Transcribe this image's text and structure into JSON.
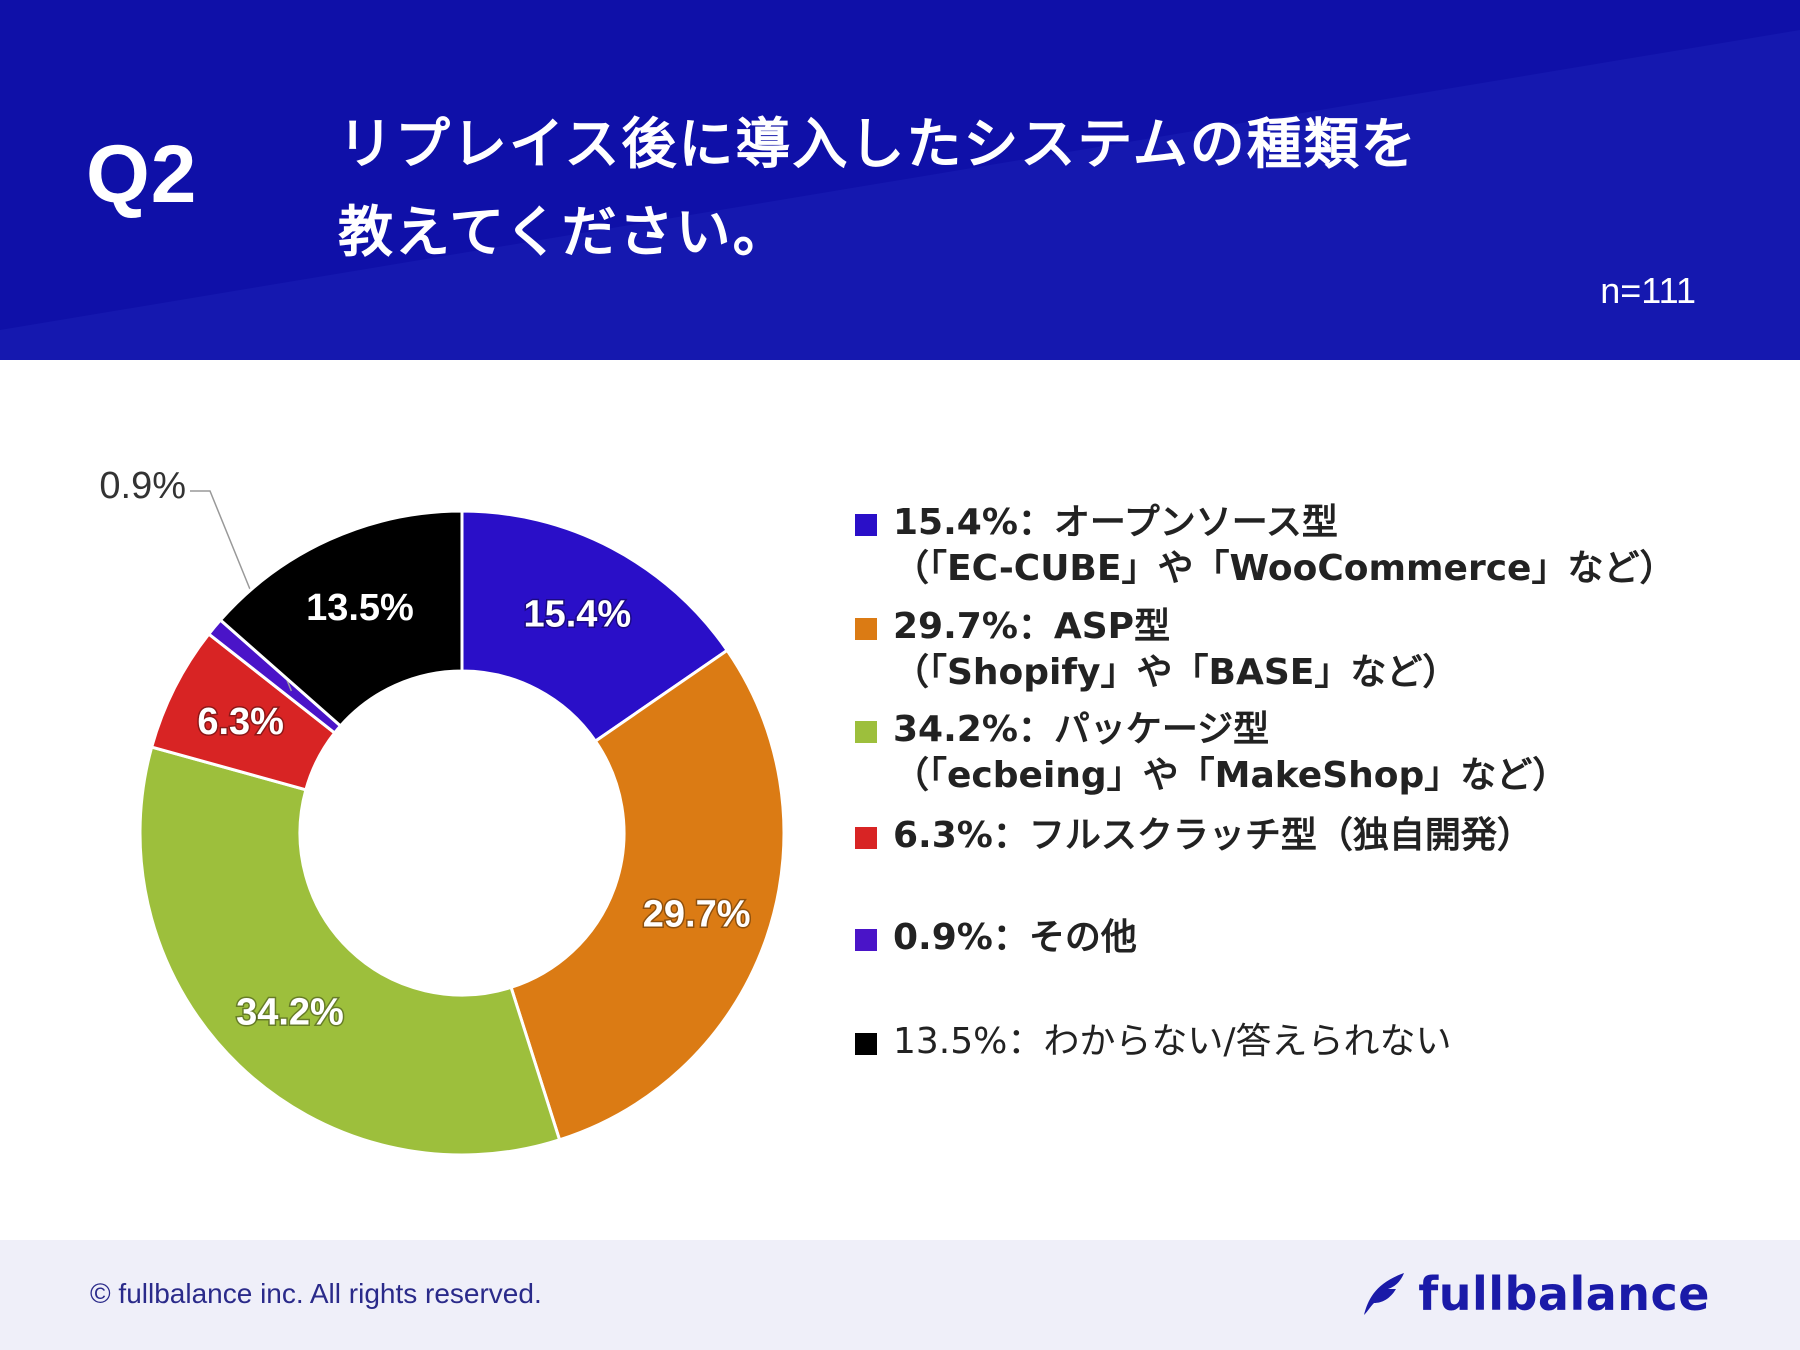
{
  "header": {
    "qnum": "Q2",
    "question_line1": "リプレイス後に導入したシステムの種類を",
    "question_line2": "教えてください。",
    "sample": "n=111"
  },
  "colors": {
    "header_bg": "#0f10a8",
    "brand": "#1a1aa8"
  },
  "chart_data": {
    "type": "pie",
    "donut": true,
    "categories": [
      "オープンソース型",
      "ASP型",
      "パッケージ型",
      "フルスクラッチ型",
      "その他",
      "わからない/答えられない"
    ],
    "values": [
      15.4,
      29.7,
      34.2,
      6.3,
      0.9,
      13.5
    ],
    "slice_labels": [
      "15.4%",
      "29.7%",
      "34.2%",
      "6.3%",
      "0.9%",
      "13.5%"
    ],
    "colors": [
      "#2a0fc8",
      "#db7b14",
      "#9dbf3c",
      "#d82424",
      "#4a14c8",
      "#000000"
    ],
    "legend_position": "right"
  },
  "legend": [
    {
      "line1": "15.4%：オープンソース型",
      "line2": "（「EC-CUBE」や「WooCommerce」など）",
      "color": "#2a0fc8"
    },
    {
      "line1": "29.7%：ASP型",
      "line2": "（「Shopify」や「BASE」など）",
      "color": "#db7b14"
    },
    {
      "line1": "34.2%：パッケージ型",
      "line2": "（「ecbeing」や「MakeShop」など）",
      "color": "#9dbf3c"
    },
    {
      "line1": "6.3%：フルスクラッチ型（独自開発）",
      "line2": "",
      "color": "#d82424"
    },
    {
      "line1": "0.9%：その他",
      "line2": "",
      "color": "#4a14c8"
    },
    {
      "line1": "13.5%：わからない/答えられない",
      "line2": "",
      "color": "#000000"
    }
  ],
  "footer": {
    "copyright": "© fullbalance inc. All rights reserved.",
    "brand": "fullbalance",
    "brand_icon": "feather-icon"
  }
}
